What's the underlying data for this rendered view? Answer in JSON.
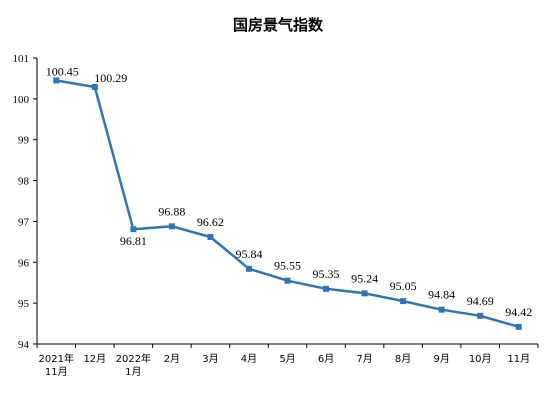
{
  "title": "国房景气指数",
  "colors": {
    "series": "#2E75B6",
    "axis": "#000000"
  },
  "chart_data": {
    "type": "line",
    "title": "国房景气指数",
    "xlabel": "",
    "ylabel": "",
    "ylim": [
      94,
      101
    ],
    "yticks": [
      94,
      95,
      96,
      97,
      98,
      99,
      100,
      101
    ],
    "grid": false,
    "categories": [
      [
        "2021年",
        "11月"
      ],
      [
        "12月"
      ],
      [
        "2022年",
        "1月"
      ],
      [
        "2月"
      ],
      [
        "3月"
      ],
      [
        "4月"
      ],
      [
        "5月"
      ],
      [
        "6月"
      ],
      [
        "7月"
      ],
      [
        "8月"
      ],
      [
        "9月"
      ],
      [
        "10月"
      ],
      [
        "11月"
      ]
    ],
    "series": [
      {
        "values": [
          100.45,
          100.29,
          96.81,
          96.88,
          96.62,
          95.84,
          95.55,
          95.35,
          95.24,
          95.05,
          94.84,
          94.69,
          94.42
        ],
        "data_labels": [
          "100.45",
          "100.29",
          "96.81",
          "96.88",
          "96.62",
          "95.84",
          "95.55",
          "95.35",
          "95.24",
          "95.05",
          "94.84",
          "94.69",
          "94.42"
        ]
      }
    ]
  }
}
